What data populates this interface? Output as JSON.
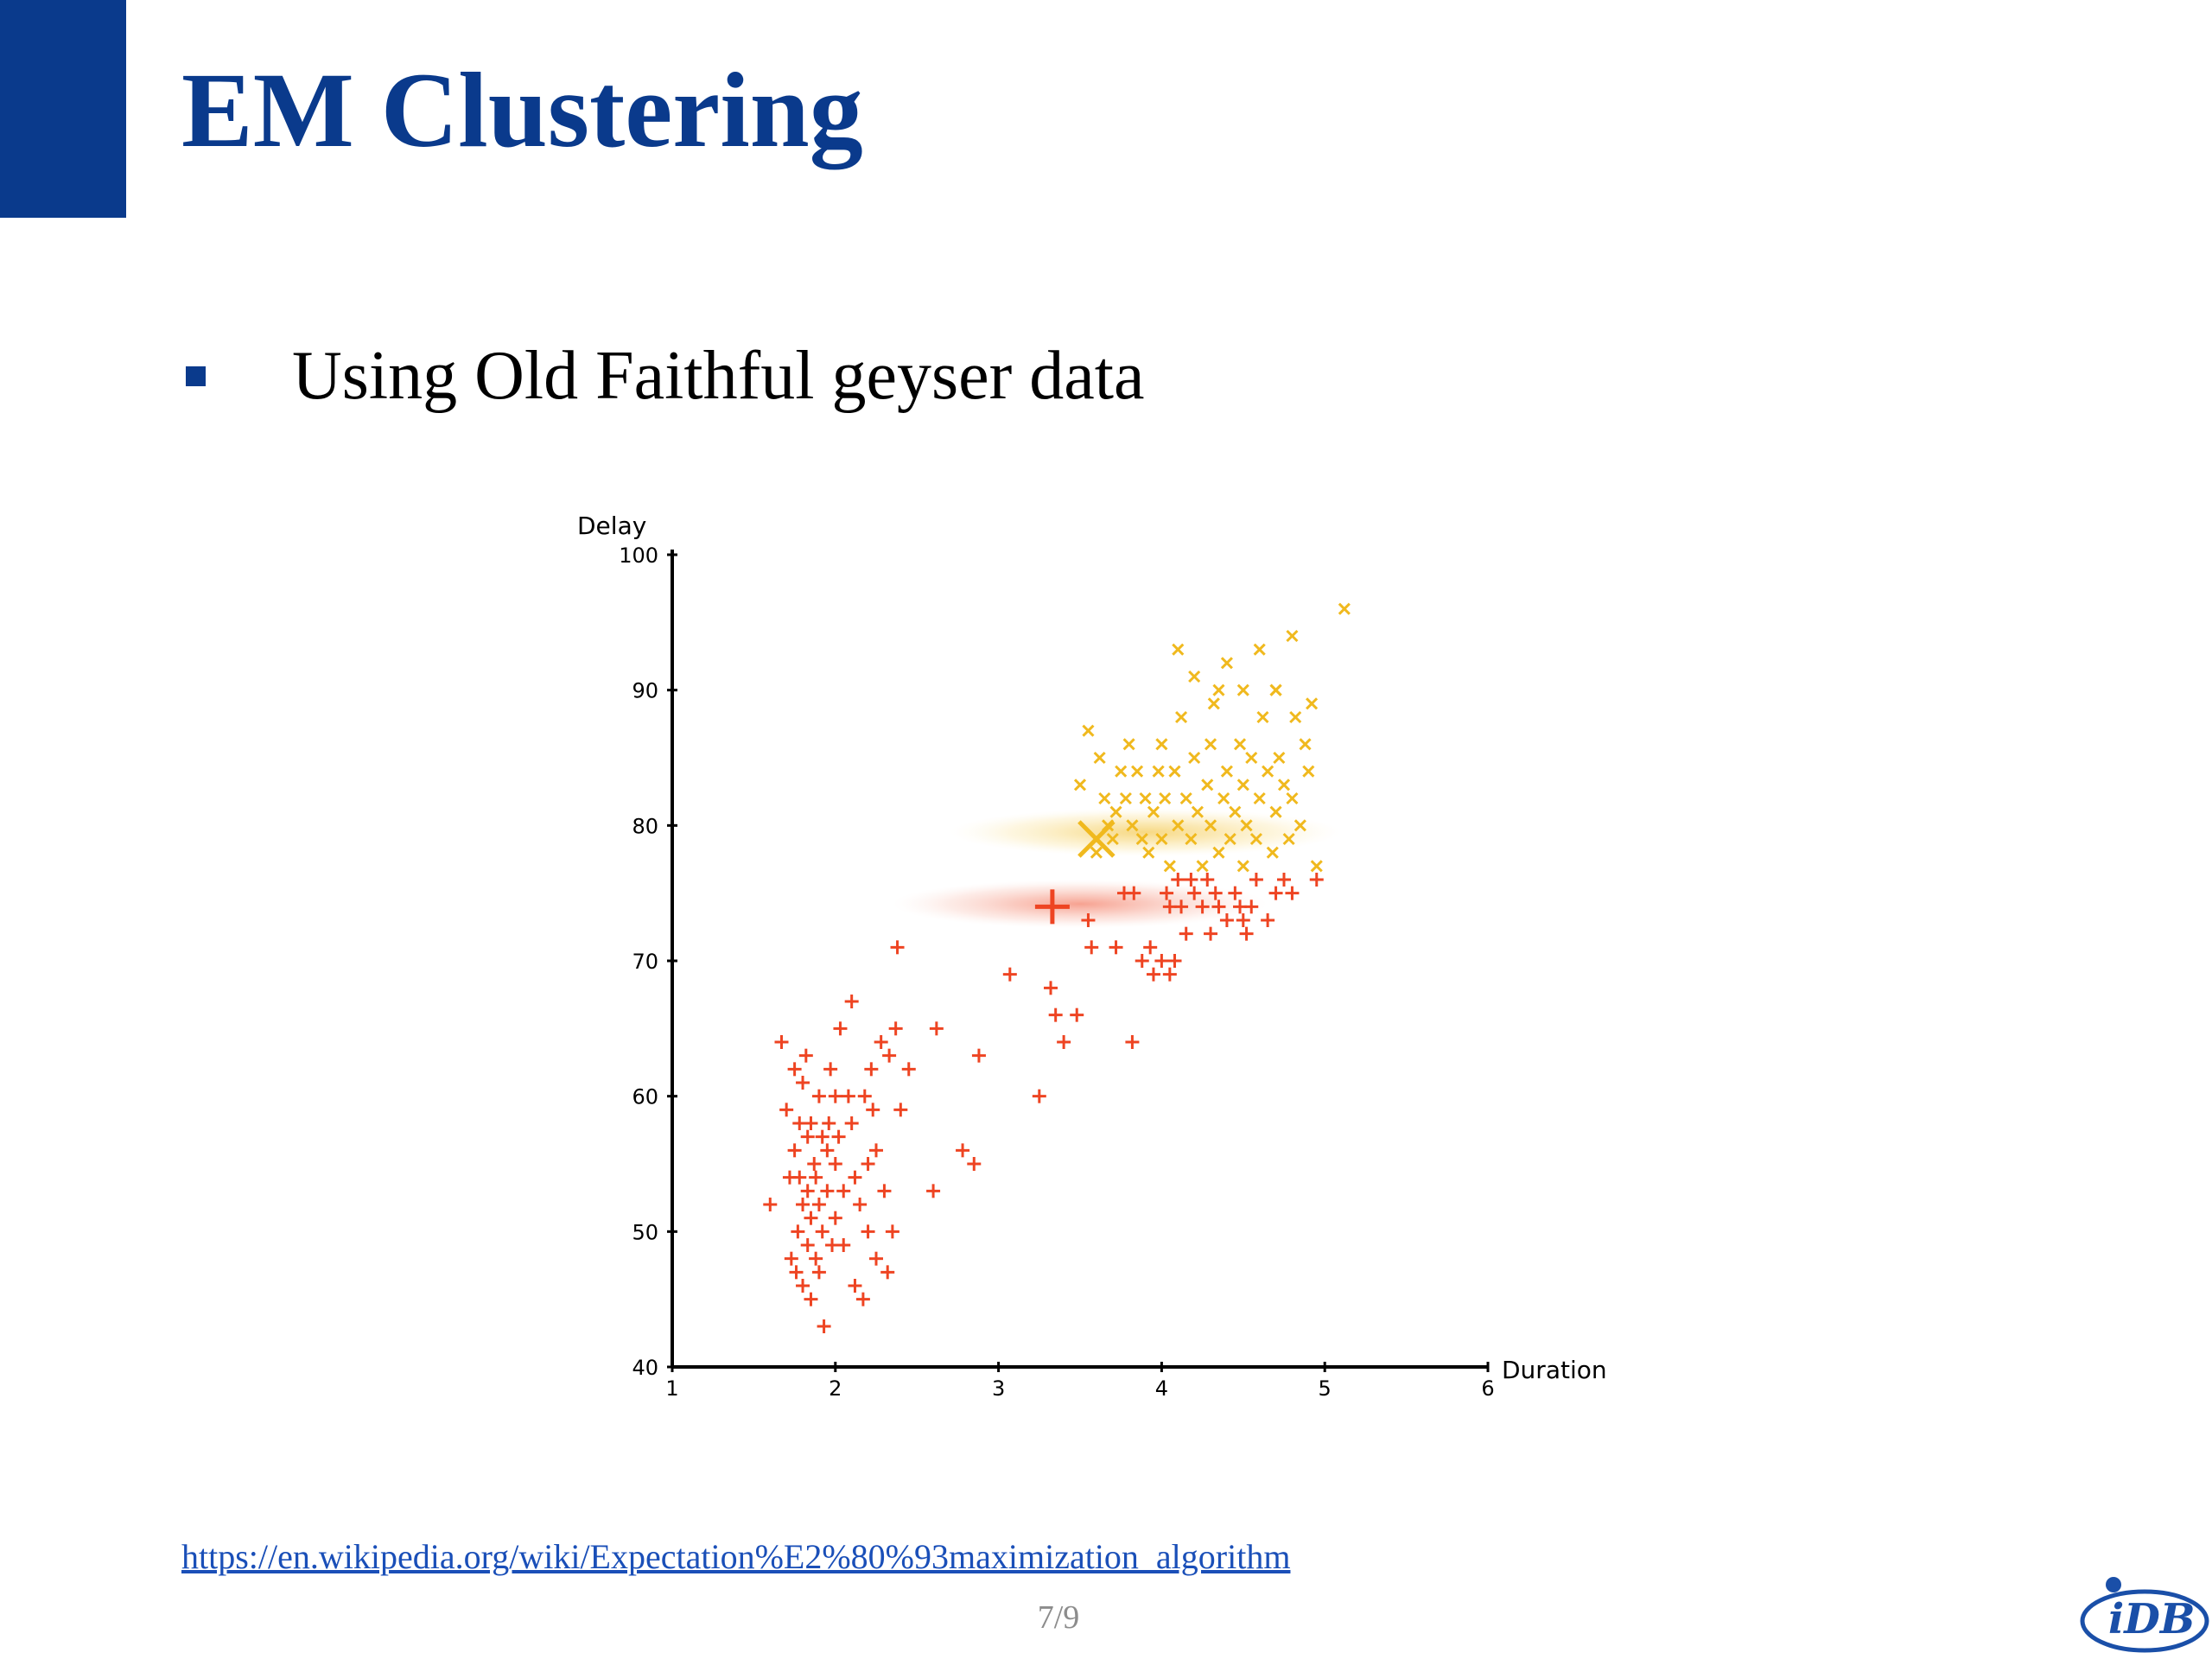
{
  "slide": {
    "title": "EM Clustering",
    "bullet": "Using Old Faithful geyser data",
    "source_url": "https://en.wikipedia.org/wiki/Expectation%E2%80%93maximization_algorithm",
    "page_number": "7/9",
    "logo_text": "iDB"
  },
  "colors": {
    "brand": "#0a3a8c",
    "cluster_red": "#ee4422",
    "cluster_yellow": "#f0b91e",
    "link": "#1a4fb8"
  },
  "chart_data": {
    "type": "scatter",
    "xlabel": "Duration",
    "ylabel": "Delay",
    "xlim": [
      1,
      6
    ],
    "ylim": [
      40,
      100
    ],
    "xticks": [
      1,
      2,
      3,
      4,
      5,
      6
    ],
    "yticks": [
      40,
      50,
      60,
      70,
      80,
      90,
      100
    ],
    "ytick_labels": [
      "40",
      "50",
      "60",
      "70",
      "80",
      "90",
      "100"
    ],
    "grid": false,
    "legend": false,
    "series": [
      {
        "marker": "plus",
        "color": "#ee4422",
        "points": [
          [
            1.6,
            52
          ],
          [
            1.67,
            64
          ],
          [
            1.7,
            59
          ],
          [
            1.72,
            54
          ],
          [
            1.73,
            48
          ],
          [
            1.75,
            62
          ],
          [
            1.75,
            56
          ],
          [
            1.76,
            47
          ],
          [
            1.77,
            50
          ],
          [
            1.78,
            58
          ],
          [
            1.78,
            54
          ],
          [
            1.8,
            61
          ],
          [
            1.8,
            52
          ],
          [
            1.8,
            46
          ],
          [
            1.82,
            63
          ],
          [
            1.83,
            57
          ],
          [
            1.83,
            53
          ],
          [
            1.83,
            49
          ],
          [
            1.85,
            58
          ],
          [
            1.85,
            51
          ],
          [
            1.85,
            45
          ],
          [
            1.87,
            55
          ],
          [
            1.88,
            54
          ],
          [
            1.88,
            48
          ],
          [
            1.9,
            60
          ],
          [
            1.9,
            52
          ],
          [
            1.9,
            47
          ],
          [
            1.92,
            57
          ],
          [
            1.92,
            50
          ],
          [
            1.93,
            43
          ],
          [
            1.95,
            56
          ],
          [
            1.95,
            53
          ],
          [
            1.96,
            58
          ],
          [
            1.97,
            62
          ],
          [
            1.98,
            49
          ],
          [
            2.0,
            60
          ],
          [
            2.0,
            55
          ],
          [
            2.0,
            51
          ],
          [
            2.02,
            57
          ],
          [
            2.03,
            65
          ],
          [
            2.05,
            53
          ],
          [
            2.05,
            49
          ],
          [
            2.08,
            60
          ],
          [
            2.1,
            67
          ],
          [
            2.1,
            58
          ],
          [
            2.12,
            54
          ],
          [
            2.12,
            46
          ],
          [
            2.15,
            52
          ],
          [
            2.17,
            45
          ],
          [
            2.18,
            60
          ],
          [
            2.2,
            55
          ],
          [
            2.2,
            50
          ],
          [
            2.22,
            62
          ],
          [
            2.23,
            59
          ],
          [
            2.25,
            56
          ],
          [
            2.25,
            48
          ],
          [
            2.28,
            64
          ],
          [
            2.3,
            53
          ],
          [
            2.32,
            47
          ],
          [
            2.33,
            63
          ],
          [
            2.35,
            50
          ],
          [
            2.37,
            65
          ],
          [
            2.38,
            71
          ],
          [
            2.4,
            59
          ],
          [
            2.45,
            62
          ],
          [
            2.6,
            53
          ],
          [
            2.62,
            65
          ],
          [
            2.78,
            56
          ],
          [
            2.85,
            55
          ],
          [
            2.88,
            63
          ],
          [
            3.07,
            69
          ],
          [
            3.25,
            60
          ],
          [
            3.32,
            68
          ],
          [
            3.35,
            66
          ],
          [
            3.4,
            64
          ],
          [
            3.48,
            66
          ],
          [
            3.55,
            73
          ],
          [
            3.57,
            71
          ],
          [
            3.72,
            71
          ],
          [
            3.77,
            75
          ],
          [
            3.82,
            64
          ],
          [
            3.83,
            75
          ],
          [
            3.88,
            70
          ],
          [
            3.93,
            71
          ],
          [
            3.95,
            69
          ],
          [
            4.0,
            70
          ],
          [
            4.03,
            75
          ],
          [
            4.05,
            74
          ],
          [
            4.05,
            69
          ],
          [
            4.08,
            70
          ],
          [
            4.1,
            76
          ],
          [
            4.12,
            74
          ],
          [
            4.15,
            72
          ],
          [
            4.18,
            76
          ],
          [
            4.2,
            75
          ],
          [
            4.25,
            74
          ],
          [
            4.28,
            76
          ],
          [
            4.3,
            72
          ],
          [
            4.33,
            75
          ],
          [
            4.35,
            74
          ],
          [
            4.4,
            73
          ],
          [
            4.45,
            75
          ],
          [
            4.48,
            74
          ],
          [
            4.5,
            73
          ],
          [
            4.52,
            72
          ],
          [
            4.55,
            74
          ],
          [
            4.58,
            76
          ],
          [
            4.65,
            73
          ],
          [
            4.7,
            75
          ],
          [
            4.75,
            76
          ],
          [
            4.8,
            75
          ],
          [
            4.95,
            76
          ]
        ]
      },
      {
        "marker": "cross",
        "color": "#f0b91e",
        "points": [
          [
            3.5,
            83
          ],
          [
            3.55,
            87
          ],
          [
            3.6,
            78
          ],
          [
            3.62,
            85
          ],
          [
            3.65,
            82
          ],
          [
            3.67,
            80
          ],
          [
            3.7,
            79
          ],
          [
            3.72,
            81
          ],
          [
            3.75,
            84
          ],
          [
            3.78,
            82
          ],
          [
            3.8,
            86
          ],
          [
            3.82,
            80
          ],
          [
            3.85,
            84
          ],
          [
            3.88,
            79
          ],
          [
            3.9,
            82
          ],
          [
            3.92,
            78
          ],
          [
            3.95,
            81
          ],
          [
            3.98,
            84
          ],
          [
            4.0,
            86
          ],
          [
            4.0,
            79
          ],
          [
            4.02,
            82
          ],
          [
            4.05,
            77
          ],
          [
            4.08,
            84
          ],
          [
            4.1,
            80
          ],
          [
            4.1,
            93
          ],
          [
            4.12,
            88
          ],
          [
            4.15,
            82
          ],
          [
            4.18,
            79
          ],
          [
            4.2,
            85
          ],
          [
            4.22,
            81
          ],
          [
            4.25,
            77
          ],
          [
            4.28,
            83
          ],
          [
            4.3,
            86
          ],
          [
            4.3,
            80
          ],
          [
            4.32,
            89
          ],
          [
            4.35,
            78
          ],
          [
            4.38,
            82
          ],
          [
            4.4,
            84
          ],
          [
            4.4,
            92
          ],
          [
            4.42,
            79
          ],
          [
            4.45,
            81
          ],
          [
            4.48,
            86
          ],
          [
            4.5,
            83
          ],
          [
            4.5,
            77
          ],
          [
            4.52,
            80
          ],
          [
            4.55,
            85
          ],
          [
            4.58,
            79
          ],
          [
            4.6,
            82
          ],
          [
            4.6,
            93
          ],
          [
            4.62,
            88
          ],
          [
            4.65,
            84
          ],
          [
            4.68,
            78
          ],
          [
            4.7,
            81
          ],
          [
            4.7,
            90
          ],
          [
            4.72,
            85
          ],
          [
            4.75,
            83
          ],
          [
            4.78,
            79
          ],
          [
            4.8,
            82
          ],
          [
            4.8,
            94
          ],
          [
            4.82,
            88
          ],
          [
            4.85,
            80
          ],
          [
            4.88,
            86
          ],
          [
            4.9,
            84
          ],
          [
            4.92,
            89
          ],
          [
            4.95,
            77
          ],
          [
            5.12,
            96
          ],
          [
            4.35,
            90
          ],
          [
            4.5,
            90
          ],
          [
            4.2,
            91
          ],
          [
            4.7,
            90
          ]
        ]
      }
    ],
    "means": [
      {
        "x": 3.33,
        "y": 74,
        "marker": "plus",
        "color": "#ee4422"
      },
      {
        "x": 3.6,
        "y": 79,
        "marker": "cross",
        "color": "#f0b91e"
      }
    ],
    "gaussians": [
      {
        "cx": 3.9,
        "cy": 79.5,
        "sx": 1.2,
        "sy": 1.8,
        "color": "#f0b91e"
      },
      {
        "cx": 3.5,
        "cy": 74.2,
        "sx": 1.15,
        "sy": 1.8,
        "color": "#ee4422"
      }
    ]
  }
}
